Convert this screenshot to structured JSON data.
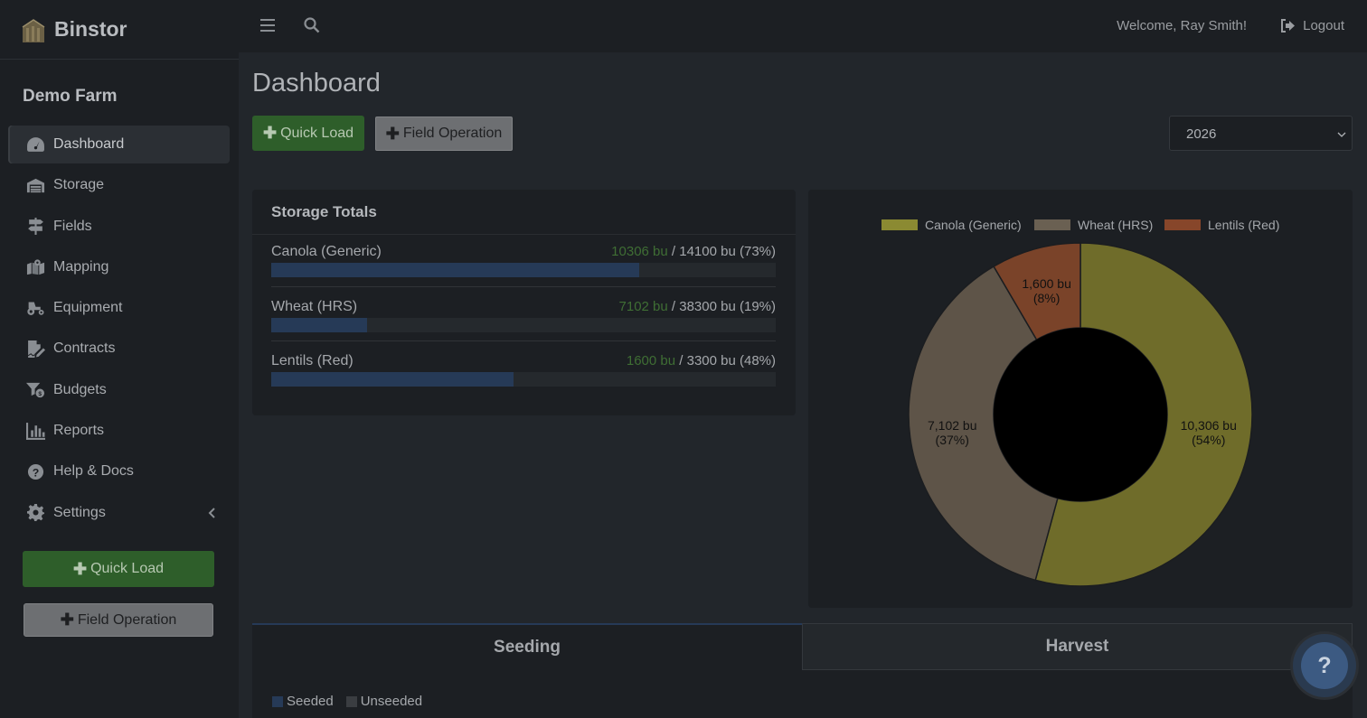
{
  "brand": {
    "name": "Binstor"
  },
  "sidebar": {
    "farm": "Demo Farm",
    "items": [
      {
        "label": "Dashboard",
        "icon": "dashboard-icon",
        "active": true
      },
      {
        "label": "Storage",
        "icon": "warehouse-icon"
      },
      {
        "label": "Fields",
        "icon": "signpost-icon"
      },
      {
        "label": "Mapping",
        "icon": "map-icon"
      },
      {
        "label": "Equipment",
        "icon": "tractor-icon"
      },
      {
        "label": "Contracts",
        "icon": "contract-icon"
      },
      {
        "label": "Budgets",
        "icon": "budget-icon"
      },
      {
        "label": "Reports",
        "icon": "chart-icon"
      },
      {
        "label": "Help & Docs",
        "icon": "question-icon"
      },
      {
        "label": "Settings",
        "icon": "gear-icon"
      }
    ],
    "quick_load": "Quick Load",
    "field_operation": "Field Operation"
  },
  "topbar": {
    "welcome": "Welcome, Ray Smith!",
    "logout": "Logout"
  },
  "main": {
    "title": "Dashboard",
    "quick_load": "Quick Load",
    "field_operation": "Field Operation",
    "year": "2026"
  },
  "storage": {
    "title": "Storage Totals",
    "rows": [
      {
        "name": "Canola (Generic)",
        "stored": "10306 bu",
        "rest": " / 14100 bu (73%)",
        "fraction": 0.73
      },
      {
        "name": "Wheat (HRS)",
        "stored": "7102 bu",
        "rest": " / 38300 bu (19%)",
        "fraction": 0.19
      },
      {
        "name": "Lentils (Red)",
        "stored": "1600 bu",
        "rest": " / 3300 bu (48%)",
        "fraction": 0.48
      }
    ]
  },
  "chart_data": {
    "type": "pie",
    "donut": true,
    "legend_position": "top",
    "categories": [
      "Canola (Generic)",
      "Wheat (HRS)",
      "Lentils (Red)"
    ],
    "values": [
      10306,
      7102,
      1600
    ],
    "labels": [
      "10,306 bu",
      "7,102 bu",
      "1,600 bu"
    ],
    "percent_labels": [
      "(54%)",
      "(37%)",
      "(8%)"
    ],
    "colors": [
      "#6f6c2a",
      "#5e5448",
      "#7a4329"
    ],
    "legend_colors": [
      "#8b8a32",
      "#6a6052",
      "#87462a"
    ]
  },
  "tabs": {
    "seeding": "Seeding",
    "harvest": "Harvest",
    "legend": [
      {
        "label": "Seeded",
        "color": "#263a57"
      },
      {
        "label": "Unseeded",
        "color": "#3a3d41"
      }
    ]
  },
  "help": {
    "label": "?"
  }
}
